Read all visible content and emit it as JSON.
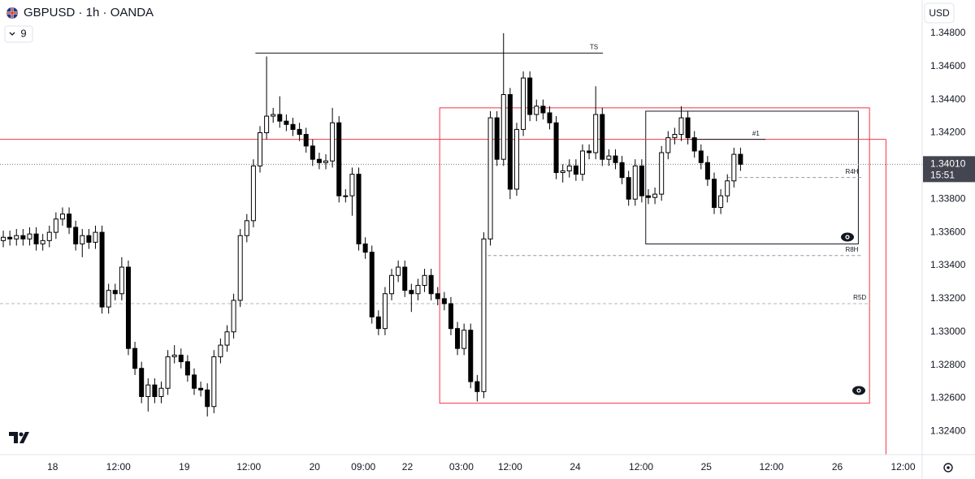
{
  "chart_data": {
    "type": "candlestick",
    "title": "GBPUSD · 1h · OANDA",
    "legend_count": "9",
    "currency": "USD",
    "up_color": "#ffffff",
    "down_color": "#000000",
    "border_color": "#000000",
    "grid": false,
    "xlim": [
      -0.5,
      139.6
    ],
    "xticks": [
      {
        "value": 7.5,
        "label": "18"
      },
      {
        "value": 17.5,
        "label": "12:00"
      },
      {
        "value": 27.5,
        "label": "19"
      },
      {
        "value": 37.3,
        "label": "12:00"
      },
      {
        "value": 47.3,
        "label": "20"
      },
      {
        "value": 54.7,
        "label": "09:00"
      },
      {
        "value": 61.4,
        "label": "22"
      },
      {
        "value": 69.6,
        "label": "03:00"
      },
      {
        "value": 77.0,
        "label": "12:00"
      },
      {
        "value": 86.9,
        "label": "24"
      },
      {
        "value": 96.9,
        "label": "12:00"
      },
      {
        "value": 106.8,
        "label": "25"
      },
      {
        "value": 116.7,
        "label": "12:00"
      },
      {
        "value": 126.7,
        "label": "26"
      },
      {
        "value": 136.7,
        "label": "12:00"
      }
    ],
    "ylim": [
      1.3226,
      1.35
    ],
    "yticks": [
      {
        "value": 1.348,
        "label": "1.34800"
      },
      {
        "value": 1.346,
        "label": "1.34600"
      },
      {
        "value": 1.344,
        "label": "1.34400"
      },
      {
        "value": 1.342,
        "label": "1.34200"
      },
      {
        "value": 1.338,
        "label": "1.33800"
      },
      {
        "value": 1.336,
        "label": "1.33600"
      },
      {
        "value": 1.334,
        "label": "1.33400"
      },
      {
        "value": 1.332,
        "label": "1.33200"
      },
      {
        "value": 1.33,
        "label": "1.33000"
      },
      {
        "value": 1.328,
        "label": "1.32800"
      },
      {
        "value": 1.326,
        "label": "1.32600"
      },
      {
        "value": 1.324,
        "label": "1.32400"
      }
    ],
    "last_price": {
      "value": 1.3401,
      "label": "1.34010"
    },
    "countdown": "15:51",
    "x": [
      0,
      1,
      2,
      3,
      4,
      5,
      6,
      7,
      8,
      9,
      10,
      11,
      12,
      13,
      14,
      15,
      16,
      17,
      18,
      19,
      20,
      21,
      22,
      23,
      24,
      25,
      26,
      27,
      28,
      29,
      30,
      31,
      32,
      33,
      34,
      35,
      36,
      37,
      38,
      39,
      40,
      41,
      42,
      43,
      44,
      45,
      46,
      47,
      48,
      49,
      50,
      51,
      52,
      53,
      54,
      55,
      56,
      57,
      58,
      59,
      60,
      61,
      62,
      63,
      64,
      65,
      66,
      67,
      68,
      69,
      70,
      71,
      72,
      73,
      74,
      75,
      76,
      77,
      78,
      79,
      80,
      81,
      82,
      83,
      84,
      85,
      86,
      87,
      88,
      89,
      90,
      91,
      92,
      93,
      94,
      95,
      96,
      97,
      98,
      99,
      100,
      101,
      102,
      103,
      104,
      105,
      106,
      107,
      108,
      109,
      110,
      111,
      112
    ],
    "open": [
      1.3355,
      1.3357,
      1.3356,
      1.3358,
      1.3356,
      1.3359,
      1.3353,
      1.3355,
      1.336,
      1.3368,
      1.3371,
      1.3363,
      1.3353,
      1.3358,
      1.3354,
      1.336,
      1.3315,
      1.3325,
      1.3323,
      1.3339,
      1.329,
      1.3278,
      1.3261,
      1.3268,
      1.3261,
      1.3266,
      1.3285,
      1.3286,
      1.3282,
      1.3274,
      1.3266,
      1.3265,
      1.3255,
      1.3285,
      1.3292,
      1.33,
      1.3319,
      1.3358,
      1.3367,
      1.34,
      1.342,
      1.343,
      1.3431,
      1.3427,
      1.3425,
      1.3422,
      1.3419,
      1.3412,
      1.3404,
      1.3402,
      1.3403,
      1.3426,
      1.3382,
      1.3382,
      1.3395,
      1.3353,
      1.3348,
      1.3309,
      1.3302,
      1.3323,
      1.3334,
      1.3339,
      1.3325,
      1.3323,
      1.3328,
      1.3334,
      1.3323,
      1.332,
      1.3317,
      1.3302,
      1.329,
      1.3301,
      1.327,
      1.3264,
      1.3356,
      1.3429,
      1.3404,
      1.3443,
      1.3386,
      1.3422,
      1.3453,
      1.3431,
      1.3436,
      1.3432,
      1.3426,
      1.3396,
      1.3397,
      1.34,
      1.3395,
      1.3409,
      1.3408,
      1.3431,
      1.3404,
      1.3406,
      1.3402,
      1.3393,
      1.338,
      1.34,
      1.3382,
      1.3381,
      1.3383,
      1.3408,
      1.3417,
      1.3419,
      1.3429,
      1.3417,
      1.3409,
      1.3402,
      1.3392,
      1.3375,
      1.3382,
      1.3391,
      1.3407
    ],
    "high": [
      1.3361,
      1.3361,
      1.3362,
      1.3362,
      1.3363,
      1.3363,
      1.3359,
      1.3364,
      1.3372,
      1.3375,
      1.3375,
      1.3367,
      1.3362,
      1.3362,
      1.3364,
      1.3364,
      1.3329,
      1.3329,
      1.3345,
      1.3343,
      1.3294,
      1.3282,
      1.3272,
      1.3272,
      1.327,
      1.3289,
      1.3292,
      1.329,
      1.3286,
      1.3278,
      1.327,
      1.3269,
      1.3289,
      1.3296,
      1.3304,
      1.3323,
      1.3362,
      1.3371,
      1.3404,
      1.3424,
      1.3466,
      1.3435,
      1.3442,
      1.3431,
      1.3429,
      1.3426,
      1.3423,
      1.3416,
      1.3408,
      1.3407,
      1.3435,
      1.343,
      1.3386,
      1.3399,
      1.3399,
      1.3357,
      1.3352,
      1.3313,
      1.3327,
      1.3338,
      1.3343,
      1.3343,
      1.3329,
      1.3332,
      1.3338,
      1.3338,
      1.3327,
      1.3324,
      1.3321,
      1.3306,
      1.3305,
      1.3305,
      1.3274,
      1.336,
      1.3433,
      1.3433,
      1.348,
      1.3447,
      1.3426,
      1.3457,
      1.3457,
      1.344,
      1.344,
      1.3436,
      1.343,
      1.3401,
      1.3404,
      1.3404,
      1.3413,
      1.3413,
      1.3448,
      1.3435,
      1.341,
      1.341,
      1.3406,
      1.3397,
      1.3404,
      1.3404,
      1.3386,
      1.3387,
      1.3412,
      1.3421,
      1.3423,
      1.3436,
      1.3433,
      1.3421,
      1.3413,
      1.3406,
      1.3396,
      1.3386,
      1.3395,
      1.3411,
      1.3411
    ],
    "low": [
      1.3351,
      1.3352,
      1.3352,
      1.3352,
      1.3352,
      1.3349,
      1.3349,
      1.3351,
      1.3356,
      1.3364,
      1.3359,
      1.3349,
      1.3345,
      1.335,
      1.335,
      1.3311,
      1.3311,
      1.3319,
      1.3319,
      1.3286,
      1.3274,
      1.3257,
      1.3252,
      1.3257,
      1.3257,
      1.3262,
      1.3281,
      1.3278,
      1.327,
      1.3262,
      1.3261,
      1.3249,
      1.3251,
      1.3281,
      1.3288,
      1.3296,
      1.3315,
      1.3354,
      1.3363,
      1.3396,
      1.3416,
      1.3426,
      1.3423,
      1.3421,
      1.3418,
      1.3415,
      1.3408,
      1.34,
      1.3398,
      1.3398,
      1.3399,
      1.3378,
      1.3378,
      1.337,
      1.3349,
      1.3344,
      1.3305,
      1.3298,
      1.3298,
      1.3319,
      1.333,
      1.3321,
      1.3312,
      1.3319,
      1.3324,
      1.3319,
      1.3316,
      1.3313,
      1.3298,
      1.3286,
      1.3286,
      1.3266,
      1.3258,
      1.326,
      1.3352,
      1.34,
      1.34,
      1.338,
      1.3382,
      1.3418,
      1.3427,
      1.3427,
      1.3428,
      1.3422,
      1.3392,
      1.339,
      1.3393,
      1.3391,
      1.3391,
      1.3404,
      1.3404,
      1.34,
      1.34,
      1.3398,
      1.3389,
      1.3376,
      1.3376,
      1.3378,
      1.3377,
      1.3377,
      1.3379,
      1.3404,
      1.3413,
      1.3415,
      1.3413,
      1.3405,
      1.3398,
      1.3388,
      1.3371,
      1.3371,
      1.3378,
      1.3387,
      1.3397
    ],
    "close": [
      1.3357,
      1.3356,
      1.3358,
      1.3356,
      1.3359,
      1.3353,
      1.3355,
      1.336,
      1.3368,
      1.3371,
      1.3363,
      1.3353,
      1.3358,
      1.3354,
      1.336,
      1.3315,
      1.3325,
      1.3323,
      1.3339,
      1.329,
      1.3278,
      1.3261,
      1.3268,
      1.3261,
      1.3266,
      1.3285,
      1.3286,
      1.3282,
      1.3274,
      1.3266,
      1.3265,
      1.3255,
      1.3285,
      1.3292,
      1.33,
      1.3319,
      1.3358,
      1.3367,
      1.34,
      1.342,
      1.343,
      1.3431,
      1.3427,
      1.3425,
      1.3422,
      1.3419,
      1.3412,
      1.3404,
      1.3402,
      1.3403,
      1.3426,
      1.3382,
      1.3382,
      1.3395,
      1.3353,
      1.3348,
      1.3309,
      1.3302,
      1.3323,
      1.3334,
      1.3339,
      1.3325,
      1.3323,
      1.3328,
      1.3334,
      1.3323,
      1.332,
      1.3317,
      1.3302,
      1.329,
      1.3301,
      1.327,
      1.3264,
      1.3356,
      1.3429,
      1.3404,
      1.3443,
      1.3386,
      1.3422,
      1.3453,
      1.3431,
      1.3436,
      1.3432,
      1.3426,
      1.3396,
      1.3397,
      1.34,
      1.3395,
      1.3409,
      1.3408,
      1.3431,
      1.3404,
      1.3406,
      1.3402,
      1.3393,
      1.338,
      1.34,
      1.3382,
      1.3381,
      1.3383,
      1.3408,
      1.3417,
      1.3419,
      1.3429,
      1.3417,
      1.3409,
      1.3402,
      1.3392,
      1.3375,
      1.3382,
      1.3391,
      1.3407,
      1.3401
    ],
    "rectangles": [
      {
        "top": 1.3435,
        "bottom": 1.3257,
        "x1": 66.3,
        "x2": 131.6,
        "color": "#f23645"
      },
      {
        "top": 1.3433,
        "bottom": 1.3353,
        "x1": 97.6,
        "x2": 129.9,
        "color": "#131722"
      }
    ],
    "levels": [
      {
        "label": "TS",
        "value": 1.3468,
        "x1": 38.3,
        "x2": 91.1,
        "color": "#131722",
        "style": "solid"
      },
      {
        "value": 1.3416,
        "x1": -0.5,
        "x2": 134.1,
        "color": "#f23645",
        "style": "solid"
      },
      {
        "label": "#1",
        "value": 1.3416,
        "x1": 104.4,
        "x2": 115.8,
        "color": "#131722",
        "style": "solid"
      },
      {
        "label": "R4H",
        "value": 1.3393,
        "x1": 110.0,
        "x2": 130.4,
        "color": "#9598a1",
        "style": "dashed"
      },
      {
        "label": "R8H",
        "value": 1.3346,
        "x1": 73.6,
        "x2": 130.4,
        "color": "#9598a1",
        "style": "dashed"
      },
      {
        "label": "R5D",
        "value": 1.3317,
        "x1": -0.5,
        "x2": 131.6,
        "color": "#b2b5be",
        "style": "dashed"
      }
    ]
  }
}
